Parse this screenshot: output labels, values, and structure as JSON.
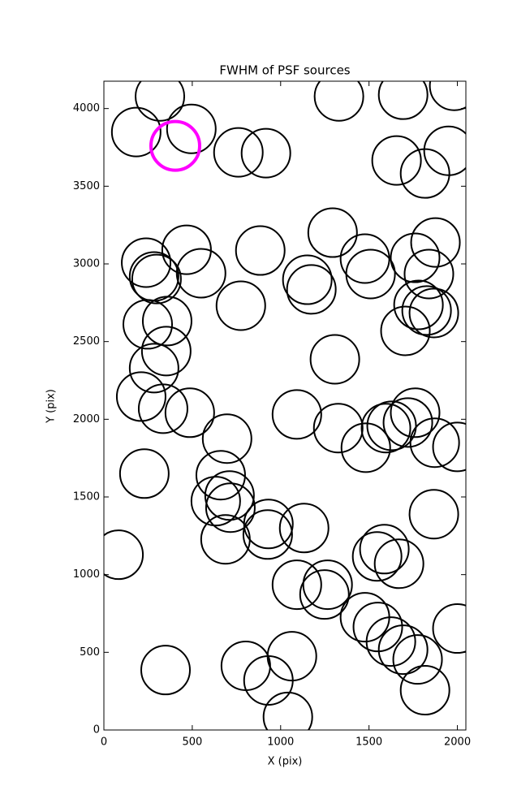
{
  "chart_data": {
    "type": "scatter",
    "title": "FWHM of PSF sources",
    "x_label": "X (pix)",
    "y_label": "Y (pix)",
    "xlim": [
      0,
      2048
    ],
    "ylim": [
      0,
      4176
    ],
    "xticks": [
      0,
      500,
      1000,
      1500,
      2000
    ],
    "yticks": [
      0,
      500,
      1000,
      1500,
      2000,
      2500,
      3000,
      3500,
      4000
    ],
    "series": [
      {
        "color": "#000000",
        "linewidth": 2,
        "x": [
          317,
          183,
          495,
          761,
          917,
          1330,
          1693,
          1982,
          1656,
          1817,
          1950,
          1294,
          1477,
          1509,
          1761,
          1876,
          1839,
          1780,
          1826,
          1867,
          1706,
          1151,
          1174,
          885,
          468,
          550,
          239,
          284,
          298,
          775,
          248,
          358,
          353,
          284,
          211,
          335,
          486,
          697,
          229,
          661,
          711,
          633,
          716,
          688,
          931,
          927,
          1133,
          83,
          1092,
          1307,
          1326,
          1482,
          1596,
          1628,
          1761,
          1720,
          1872,
          2000,
          1867,
          1587,
          1546,
          1670,
          1092,
          1266,
          1248,
          1477,
          1550,
          1624,
          1693,
          1775,
          1817,
          2000,
          1064,
          803,
          931,
          1041,
          349
        ],
        "values": [
          4078,
          3849,
          3869,
          3718,
          3713,
          4078,
          4089,
          4146,
          3666,
          3582,
          3728,
          3201,
          3034,
          2935,
          3039,
          3138,
          2935,
          2736,
          2700,
          2684,
          2569,
          2898,
          2836,
          3086,
          3091,
          2940,
          3008,
          2919,
          2903,
          2731,
          2611,
          2632,
          2439,
          2329,
          2146,
          2068,
          2042,
          1875,
          1650,
          1640,
          1509,
          1473,
          1431,
          1227,
          1326,
          1258,
          1300,
          1128,
          2031,
          2386,
          1943,
          1817,
          1943,
          1958,
          2042,
          1979,
          1849,
          1822,
          1389,
          1164,
          1117,
          1070,
          935,
          935,
          872,
          726,
          663,
          569,
          517,
          454,
          256,
          653,
          475,
          413,
          319,
          84,
          386
        ]
      },
      {
        "color": "#ff00ff",
        "linewidth": 4,
        "x": [
          404
        ],
        "values": [
          3760
        ]
      }
    ]
  }
}
